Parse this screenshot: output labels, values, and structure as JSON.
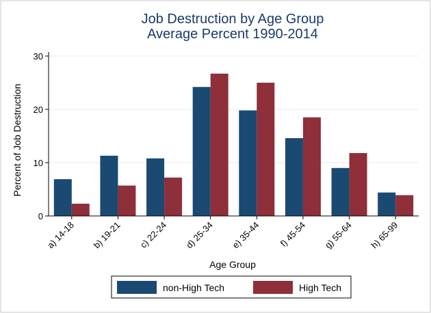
{
  "chart_data": {
    "type": "bar",
    "title": "Job Destruction by Age Group",
    "subtitle": "Average Percent 1990-2014",
    "xlabel": "Age Group",
    "ylabel": "Percent of Job Destruction",
    "categories": [
      "a) 14-18",
      "b) 19-21",
      "c) 22-24",
      "d) 25-34",
      "e) 35-44",
      "f) 45-54",
      "g) 55-64",
      "h) 65-99"
    ],
    "series": [
      {
        "name": "non-High Tech",
        "color": "#1a4a72",
        "values": [
          6.9,
          11.3,
          10.8,
          24.2,
          19.8,
          14.6,
          9.0,
          4.4
        ]
      },
      {
        "name": "High Tech",
        "color": "#8e2f3a",
        "values": [
          2.3,
          5.7,
          7.2,
          26.7,
          25.0,
          18.5,
          11.8,
          3.9
        ]
      }
    ],
    "ylim": [
      0,
      30
    ],
    "yticks": [
      0,
      10,
      20,
      30
    ],
    "grid": true,
    "legend_position": "bottom"
  }
}
